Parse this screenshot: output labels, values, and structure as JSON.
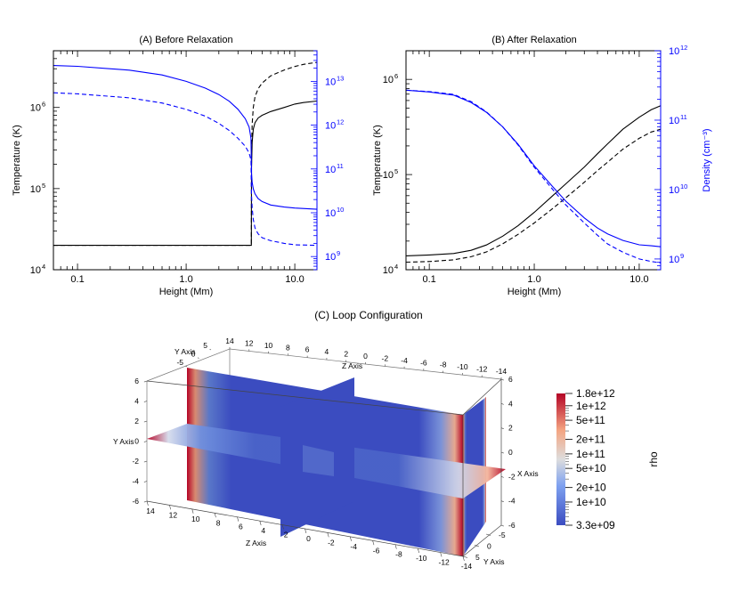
{
  "figure": {
    "panel_c_title": "(C)  Loop Configuration"
  },
  "chart_data": [
    {
      "type": "line",
      "title": "(A) Before Relaxation",
      "xlabel": "Height (Mm)",
      "ylabel": "Temperature (K)",
      "y2label": "",
      "xscale": "log",
      "yscale": "log",
      "y2scale": "log",
      "xlim": [
        0.06,
        16
      ],
      "ylim": [
        10000,
        5000000
      ],
      "y2lim": [
        500000000,
        50000000000000
      ],
      "xticks": [
        {
          "v": 0.1,
          "label": "0.1"
        },
        {
          "v": 1,
          "label": "1.0"
        },
        {
          "v": 10,
          "label": "10.0"
        }
      ],
      "yticks": [
        {
          "v": 10000,
          "b": "10",
          "e": "4"
        },
        {
          "v": 100000,
          "b": "10",
          "e": "5"
        },
        {
          "v": 1000000,
          "b": "10",
          "e": "6"
        }
      ],
      "y2ticks": [
        {
          "v": 1000000000,
          "b": "10",
          "e": "9"
        },
        {
          "v": 10000000000,
          "b": "10",
          "e": "10"
        },
        {
          "v": 100000000000,
          "b": "10",
          "e": "11"
        },
        {
          "v": 1000000000000,
          "b": "10",
          "e": "12"
        },
        {
          "v": 10000000000000,
          "b": "10",
          "e": "13"
        }
      ],
      "series": [
        {
          "axis": "y",
          "color": "#000000",
          "dash": false,
          "x": [
            0.06,
            1,
            3.5,
            3.98,
            4.0,
            4.05,
            4.15,
            4.3,
            4.6,
            5,
            6,
            8,
            10,
            12,
            16
          ],
          "y": [
            20000,
            20000,
            20000,
            20000,
            180000,
            370000,
            540000,
            650000,
            740000,
            800000,
            890000,
            1000000,
            1100000,
            1150000,
            1200000
          ]
        },
        {
          "axis": "y",
          "color": "#000000",
          "dash": true,
          "x": [
            0.06,
            1,
            3.5,
            3.98,
            4.0,
            4.05,
            4.15,
            4.3,
            4.6,
            5,
            6,
            8,
            10,
            12,
            16
          ],
          "y": [
            20000,
            20000,
            20000,
            20000,
            260000,
            620000,
            1000000,
            1350000,
            1700000,
            2000000,
            2450000,
            2900000,
            3200000,
            3400000,
            3600000
          ]
        },
        {
          "axis": "y2",
          "color": "#0000ff",
          "dash": false,
          "x": [
            0.06,
            0.1,
            0.3,
            0.6,
            1,
            1.5,
            2,
            2.5,
            3,
            3.5,
            3.8,
            3.95,
            4.0,
            4.05,
            4.15,
            4.3,
            4.6,
            5,
            6,
            8,
            10,
            16
          ],
          "y": [
            23000000000000,
            22000000000000,
            18000000000000,
            14000000000000,
            10000000000000,
            7000000000000,
            5000000000000,
            3500000000000,
            2300000000000,
            1400000000000,
            900000000000,
            500000000000,
            80000000000,
            50000000000,
            35000000000,
            27000000000,
            21000000000,
            18000000000,
            15000000000,
            13500000000,
            12800000000,
            12000000000
          ]
        },
        {
          "axis": "y2",
          "color": "#0000ff",
          "dash": true,
          "x": [
            0.06,
            0.1,
            0.3,
            0.6,
            1,
            1.5,
            2,
            2.5,
            3,
            3.5,
            3.8,
            3.95,
            4.0,
            4.05,
            4.15,
            4.3,
            4.6,
            5,
            6,
            8,
            10,
            16
          ],
          "y": [
            5500000000000,
            5200000000000,
            4200000000000,
            3200000000000,
            2300000000000,
            1600000000000,
            1100000000000,
            750000000000,
            500000000000,
            330000000000,
            230000000000,
            160000000000,
            25000000000,
            13000000000,
            7000000000,
            4500000000,
            3300000000,
            2700000000,
            2300000000,
            2000000000,
            1850000000,
            1800000000
          ]
        }
      ]
    },
    {
      "type": "line",
      "title": "(B) After Relaxation",
      "xlabel": "Height (Mm)",
      "ylabel": "Temperature (K)",
      "y2label": "Density (cm⁻³)",
      "xscale": "log",
      "yscale": "log",
      "y2scale": "log",
      "xlim": [
        0.06,
        16
      ],
      "ylim": [
        10000,
        2000000
      ],
      "y2lim": [
        700000000,
        1000000000000
      ],
      "xticks": [
        {
          "v": 0.1,
          "label": "0.1"
        },
        {
          "v": 1,
          "label": "1.0"
        },
        {
          "v": 10,
          "label": "10.0"
        }
      ],
      "yticks": [
        {
          "v": 10000,
          "b": "10",
          "e": "4"
        },
        {
          "v": 100000,
          "b": "10",
          "e": "5"
        },
        {
          "v": 1000000,
          "b": "10",
          "e": "6"
        }
      ],
      "y2ticks": [
        {
          "v": 1000000000,
          "b": "10",
          "e": "9"
        },
        {
          "v": 10000000000,
          "b": "10",
          "e": "10"
        },
        {
          "v": 100000000000,
          "b": "10",
          "e": "11"
        },
        {
          "v": 1000000000000,
          "b": "10",
          "e": "12"
        }
      ],
      "series": [
        {
          "axis": "y",
          "color": "#000000",
          "dash": false,
          "x": [
            0.06,
            0.1,
            0.17,
            0.25,
            0.35,
            0.5,
            0.7,
            1,
            1.5,
            2,
            3,
            4,
            5,
            7,
            10,
            13,
            16
          ],
          "y": [
            14000,
            14300,
            14800,
            16000,
            18200,
            22500,
            29000,
            40000,
            60000,
            80000,
            120000,
            165000,
            210000,
            300000,
            400000,
            480000,
            530000
          ]
        },
        {
          "axis": "y",
          "color": "#000000",
          "dash": true,
          "x": [
            0.06,
            0.1,
            0.17,
            0.25,
            0.35,
            0.5,
            0.7,
            1,
            1.5,
            2,
            3,
            4,
            5,
            7,
            10,
            13,
            16
          ],
          "y": [
            12000,
            12200,
            12700,
            13700,
            15400,
            18700,
            23500,
            31000,
            44000,
            57000,
            83000,
            110000,
            135000,
            185000,
            240000,
            280000,
            300000
          ]
        },
        {
          "axis": "y2",
          "color": "#0000ff",
          "dash": false,
          "x": [
            0.06,
            0.1,
            0.17,
            0.25,
            0.35,
            0.5,
            0.7,
            1,
            1.5,
            2,
            3,
            4,
            5,
            7,
            10,
            13,
            16
          ],
          "y": [
            270000000000,
            255000000000,
            230000000000,
            180000000000,
            130000000000,
            80000000000,
            45000000000,
            22000000000,
            11000000000,
            6800000000,
            3900000000,
            2800000000,
            2300000000,
            1850000000,
            1600000000,
            1550000000,
            1500000000
          ]
        },
        {
          "axis": "y2",
          "color": "#0000ff",
          "dash": true,
          "x": [
            0.06,
            0.1,
            0.17,
            0.25,
            0.35,
            0.5,
            0.7,
            1,
            1.5,
            2,
            3,
            4,
            5,
            7,
            10,
            13,
            16
          ],
          "y": [
            270000000000,
            258000000000,
            235000000000,
            185000000000,
            132000000000,
            80000000000,
            44000000000,
            21000000000,
            10000000000,
            6000000000,
            3300000000,
            2200000000,
            1650000000,
            1250000000,
            1000000000,
            920000000,
            880000000
          ]
        }
      ]
    },
    {
      "type": "heatmap",
      "title": "(C)  Loop Configuration",
      "colorbar_label": "rho",
      "colorbar_ticks": [
        "1.8e+12",
        "1e+12",
        "5e+11",
        "2e+11",
        "1e+11",
        "5e+10",
        "2e+10",
        "1e+10",
        "3.3e+09"
      ],
      "colormap": [
        "#3b4cc0",
        "#a9c4f7",
        "#dddddd",
        "#f4a582",
        "#b40426"
      ],
      "axis_titles": {
        "x_back": "X Axis",
        "y_back": "Y Axis",
        "z_back": "Z Axis",
        "x_front": "X Axis",
        "y_front": "Y Axis",
        "z_front": "Z Axis",
        "y_left": "Y Axis"
      },
      "z_top_ticks": [
        "14",
        "12",
        "10",
        "8",
        "6",
        "4",
        "2",
        "0",
        "-2",
        "-4",
        "-6",
        "-8",
        "-10",
        "-12",
        "-14"
      ],
      "z_bottom_ticks": [
        "14",
        "12",
        "10",
        "8",
        "6",
        "4",
        "2",
        "0",
        "-2",
        "-4",
        "-6",
        "-8",
        "-10",
        "-12",
        "-14"
      ],
      "y_left_ticks": [
        "6",
        "4",
        "2",
        "0",
        "-2",
        "-4",
        "-6"
      ],
      "y_right_ticks": [
        "6",
        "4",
        "2",
        "0",
        "-2",
        "-4",
        "-6"
      ],
      "x_back_ticks": [
        "5",
        "0",
        "-5"
      ],
      "x_front_ticks": [
        "5",
        "0",
        "-5"
      ]
    }
  ]
}
